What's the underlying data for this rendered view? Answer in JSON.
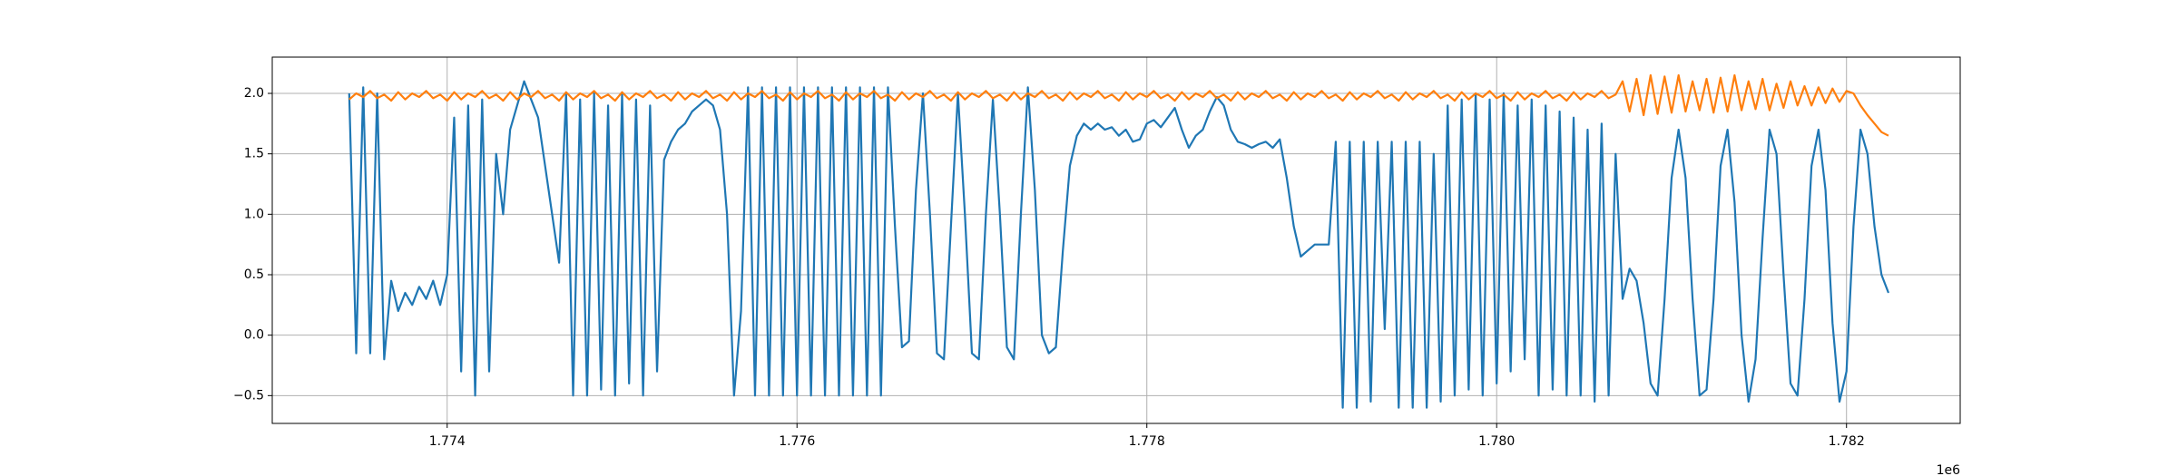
{
  "chart_data": {
    "type": "line",
    "x": [
      1773440,
      1773480,
      1773520,
      1773560,
      1773600,
      1773640,
      1773680,
      1773720,
      1773760,
      1773800,
      1773840,
      1773880,
      1773920,
      1773960,
      1774000,
      1774040,
      1774080,
      1774120,
      1774160,
      1774200,
      1774240,
      1774280,
      1774320,
      1774360,
      1774400,
      1774440,
      1774480,
      1774520,
      1774560,
      1774600,
      1774640,
      1774680,
      1774720,
      1774760,
      1774800,
      1774840,
      1774880,
      1774920,
      1774960,
      1775000,
      1775040,
      1775080,
      1775120,
      1775160,
      1775200,
      1775240,
      1775280,
      1775320,
      1775360,
      1775400,
      1775440,
      1775480,
      1775520,
      1775560,
      1775600,
      1775640,
      1775680,
      1775720,
      1775760,
      1775800,
      1775840,
      1775880,
      1775920,
      1775960,
      1776000,
      1776040,
      1776080,
      1776120,
      1776160,
      1776200,
      1776240,
      1776280,
      1776320,
      1776360,
      1776400,
      1776440,
      1776480,
      1776520,
      1776560,
      1776600,
      1776640,
      1776680,
      1776720,
      1776760,
      1776800,
      1776840,
      1776880,
      1776920,
      1776960,
      1777000,
      1777040,
      1777080,
      1777120,
      1777160,
      1777200,
      1777240,
      1777280,
      1777320,
      1777360,
      1777400,
      1777440,
      1777480,
      1777520,
      1777560,
      1777600,
      1777640,
      1777680,
      1777720,
      1777760,
      1777800,
      1777840,
      1777880,
      1777920,
      1777960,
      1778000,
      1778040,
      1778080,
      1778120,
      1778160,
      1778200,
      1778240,
      1778280,
      1778320,
      1778360,
      1778400,
      1778440,
      1778480,
      1778520,
      1778560,
      1778600,
      1778640,
      1778680,
      1778720,
      1778760,
      1778800,
      1778840,
      1778880,
      1778920,
      1778960,
      1779000,
      1779040,
      1779080,
      1779120,
      1779160,
      1779200,
      1779240,
      1779280,
      1779320,
      1779360,
      1779400,
      1779440,
      1779480,
      1779520,
      1779560,
      1779600,
      1779640,
      1779680,
      1779720,
      1779760,
      1779800,
      1779840,
      1779880,
      1779920,
      1779960,
      1780000,
      1780040,
      1780080,
      1780120,
      1780160,
      1780200,
      1780240,
      1780280,
      1780320,
      1780360,
      1780400,
      1780440,
      1780480,
      1780520,
      1780560,
      1780600,
      1780640,
      1780680,
      1780720,
      1780760,
      1780800,
      1780840,
      1780880,
      1780920,
      1780960,
      1781000,
      1781040,
      1781080,
      1781120,
      1781160,
      1781200,
      1781240,
      1781280,
      1781320,
      1781360,
      1781400,
      1781440,
      1781480,
      1781520,
      1781560,
      1781600,
      1781640,
      1781680,
      1781720,
      1781760,
      1781800,
      1781840,
      1781880,
      1781920,
      1781960,
      1782000,
      1782040,
      1782080,
      1782120,
      1782160,
      1782200,
      1782240
    ],
    "series": [
      {
        "color": "#1f77b4",
        "values": [
          2.0,
          -0.15,
          2.05,
          -0.15,
          2.0,
          -0.2,
          0.45,
          0.2,
          0.35,
          0.25,
          0.4,
          0.3,
          0.45,
          0.25,
          0.5,
          1.8,
          -0.3,
          1.9,
          -0.5,
          1.95,
          -0.3,
          1.5,
          1.0,
          1.7,
          1.9,
          2.1,
          1.95,
          1.8,
          1.4,
          1.0,
          0.6,
          2.0,
          -0.5,
          1.95,
          -0.5,
          2.0,
          -0.45,
          1.9,
          -0.5,
          2.0,
          -0.4,
          1.95,
          -0.5,
          1.9,
          -0.3,
          1.45,
          1.6,
          1.7,
          1.75,
          1.85,
          1.9,
          1.95,
          1.9,
          1.7,
          1.0,
          -0.5,
          0.2,
          2.05,
          -0.5,
          2.05,
          -0.5,
          2.05,
          -0.5,
          2.05,
          -0.5,
          2.05,
          -0.5,
          2.05,
          -0.5,
          2.05,
          -0.5,
          2.05,
          -0.5,
          2.05,
          -0.5,
          2.05,
          -0.5,
          2.05,
          0.9,
          -0.1,
          -0.05,
          1.2,
          2.0,
          1.0,
          -0.15,
          -0.2,
          0.9,
          2.0,
          1.0,
          -0.15,
          -0.2,
          1.0,
          1.95,
          1.0,
          -0.1,
          -0.2,
          1.0,
          2.05,
          1.2,
          0.0,
          -0.15,
          -0.1,
          0.7,
          1.4,
          1.65,
          1.75,
          1.7,
          1.75,
          1.7,
          1.72,
          1.65,
          1.7,
          1.6,
          1.62,
          1.75,
          1.78,
          1.72,
          1.8,
          1.88,
          1.7,
          1.55,
          1.65,
          1.7,
          1.85,
          1.97,
          1.9,
          1.7,
          1.6,
          1.58,
          1.55,
          1.58,
          1.6,
          1.55,
          1.62,
          1.3,
          0.9,
          0.65,
          0.7,
          0.75,
          0.75,
          0.75,
          1.6,
          -0.6,
          1.6,
          -0.6,
          1.6,
          -0.55,
          1.6,
          0.05,
          1.6,
          -0.6,
          1.6,
          -0.6,
          1.6,
          -0.6,
          1.5,
          -0.55,
          1.9,
          -0.5,
          1.95,
          -0.45,
          2.0,
          -0.5,
          1.95,
          -0.4,
          2.0,
          -0.3,
          1.9,
          -0.2,
          1.95,
          -0.5,
          1.9,
          -0.45,
          1.85,
          -0.5,
          1.8,
          -0.5,
          1.7,
          -0.55,
          1.75,
          -0.5,
          1.5,
          0.3,
          0.55,
          0.45,
          0.1,
          -0.4,
          -0.5,
          0.3,
          1.3,
          1.7,
          1.3,
          0.3,
          -0.5,
          -0.45,
          0.3,
          1.4,
          1.7,
          1.1,
          0.0,
          -0.55,
          -0.2,
          0.8,
          1.7,
          1.5,
          0.5,
          -0.4,
          -0.5,
          0.3,
          1.4,
          1.7,
          1.2,
          0.1,
          -0.55,
          -0.3,
          0.9,
          1.7,
          1.5,
          0.9,
          0.5,
          0.35
        ]
      },
      {
        "color": "#ff7f0e",
        "values": [
          1.95,
          2.0,
          1.97,
          2.02,
          1.96,
          1.99,
          1.94,
          2.01,
          1.95,
          2.0,
          1.97,
          2.02,
          1.96,
          1.99,
          1.94,
          2.01,
          1.95,
          2.0,
          1.97,
          2.02,
          1.96,
          1.99,
          1.94,
          2.01,
          1.95,
          2.0,
          1.97,
          2.02,
          1.96,
          1.99,
          1.94,
          2.01,
          1.95,
          2.0,
          1.97,
          2.02,
          1.96,
          1.99,
          1.94,
          2.01,
          1.95,
          2.0,
          1.97,
          2.02,
          1.96,
          1.99,
          1.94,
          2.01,
          1.95,
          2.0,
          1.97,
          2.02,
          1.96,
          1.99,
          1.94,
          2.01,
          1.95,
          2.0,
          1.97,
          2.02,
          1.96,
          1.99,
          1.94,
          2.01,
          1.95,
          2.0,
          1.97,
          2.02,
          1.96,
          1.99,
          1.94,
          2.01,
          1.95,
          2.0,
          1.97,
          2.02,
          1.96,
          1.99,
          1.94,
          2.01,
          1.95,
          2.0,
          1.97,
          2.02,
          1.96,
          1.99,
          1.94,
          2.01,
          1.95,
          2.0,
          1.97,
          2.02,
          1.96,
          1.99,
          1.94,
          2.01,
          1.95,
          2.0,
          1.97,
          2.02,
          1.96,
          1.99,
          1.94,
          2.01,
          1.95,
          2.0,
          1.97,
          2.02,
          1.96,
          1.99,
          1.94,
          2.01,
          1.95,
          2.0,
          1.97,
          2.02,
          1.96,
          1.99,
          1.94,
          2.01,
          1.95,
          2.0,
          1.97,
          2.02,
          1.96,
          1.99,
          1.94,
          2.01,
          1.95,
          2.0,
          1.97,
          2.02,
          1.96,
          1.99,
          1.94,
          2.01,
          1.95,
          2.0,
          1.97,
          2.02,
          1.96,
          1.99,
          1.94,
          2.01,
          1.95,
          2.0,
          1.97,
          2.02,
          1.96,
          1.99,
          1.94,
          2.01,
          1.95,
          2.0,
          1.97,
          2.02,
          1.96,
          1.99,
          1.94,
          2.01,
          1.95,
          2.0,
          1.97,
          2.02,
          1.96,
          1.99,
          1.94,
          2.01,
          1.95,
          2.0,
          1.97,
          2.02,
          1.96,
          1.99,
          1.94,
          2.01,
          1.95,
          2.0,
          1.97,
          2.02,
          1.96,
          1.99,
          2.1,
          1.85,
          2.12,
          1.82,
          2.15,
          1.83,
          2.14,
          1.84,
          2.15,
          1.85,
          2.1,
          1.86,
          2.12,
          1.84,
          2.13,
          1.85,
          2.15,
          1.86,
          2.1,
          1.87,
          2.12,
          1.86,
          2.08,
          1.88,
          2.1,
          1.9,
          2.06,
          1.9,
          2.05,
          1.92,
          2.04,
          1.93,
          2.02,
          2.0,
          1.9,
          1.82,
          1.75,
          1.68,
          1.65
        ]
      }
    ],
    "xlim": [
      1773000,
      1782650
    ],
    "xticks": [
      {
        "value": 1774000,
        "label": "1.774"
      },
      {
        "value": 1776000,
        "label": "1.776"
      },
      {
        "value": 1778000,
        "label": "1.778"
      },
      {
        "value": 1780000,
        "label": "1.780"
      },
      {
        "value": 1782000,
        "label": "1.782"
      }
    ],
    "x_offset_label": "1e6",
    "ylim": [
      -0.73,
      2.3
    ],
    "yticks": [
      {
        "value": -0.5,
        "label": "−0.5"
      },
      {
        "value": 0,
        "label": "0.0"
      },
      0.5,
      {
        "value": 1,
        "label": "1.0"
      },
      1.5,
      {
        "value": 2,
        "label": "2.0"
      }
    ],
    "grid": true
  }
}
